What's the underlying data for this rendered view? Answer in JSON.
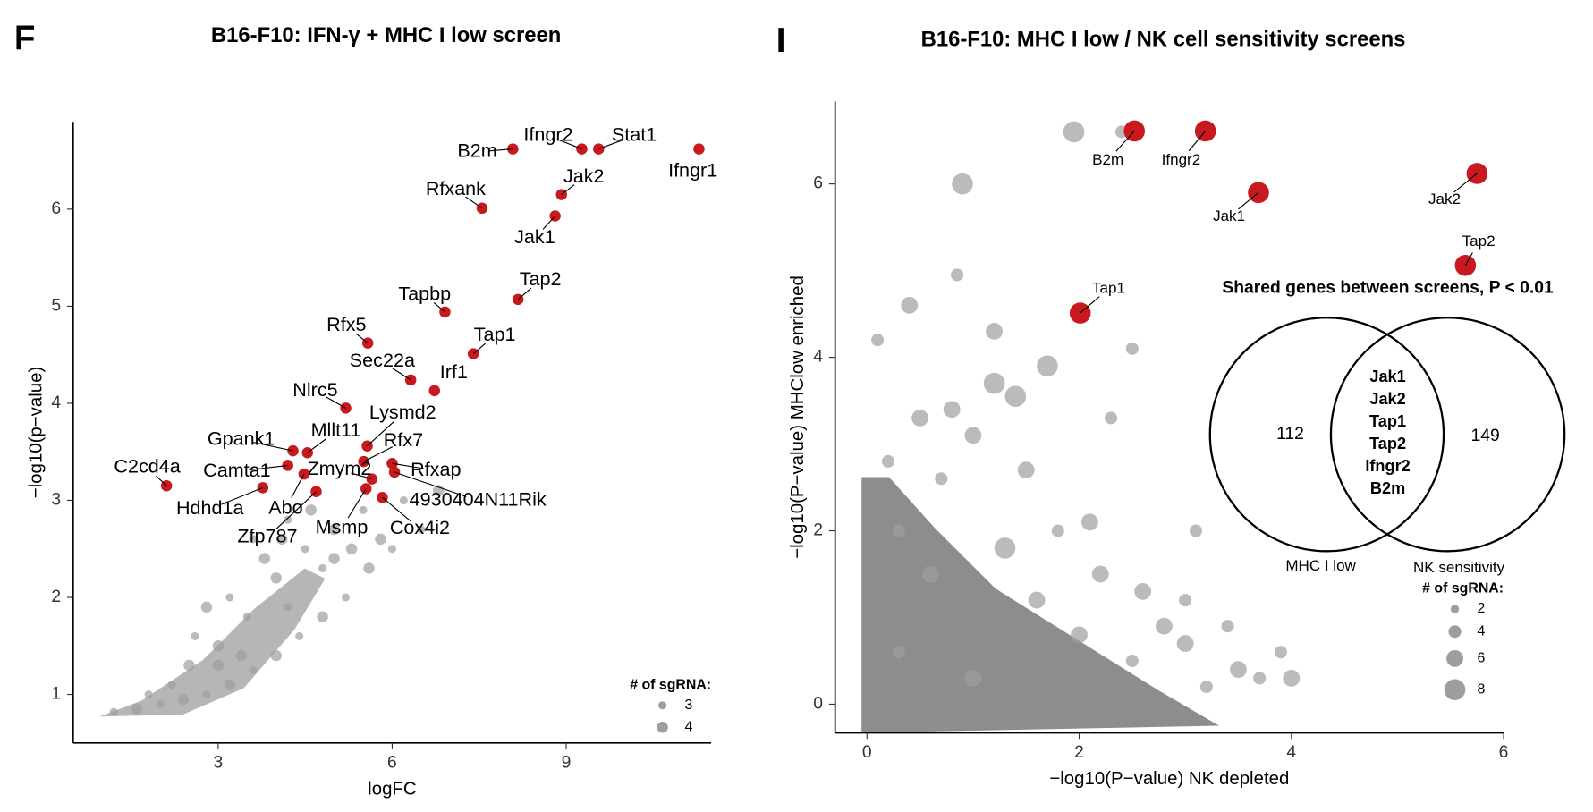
{
  "chart_data": [
    {
      "type": "scatter",
      "panel_label": "F",
      "title": "B16-F10: IFN-γ + MHC I low screen",
      "xlabel": "logFC",
      "ylabel": "−log10(p−value)",
      "xlim": [
        0.5,
        11.5
      ],
      "ylim": [
        0.5,
        6.9
      ],
      "xticks": [
        3,
        6,
        9
      ],
      "yticks": [
        1,
        2,
        3,
        4,
        5,
        6
      ],
      "series": [
        {
          "color": "#9e9e9e",
          "x": [
            1.2,
            1.6,
            2.0,
            2.4,
            2.8,
            3.2,
            3.6,
            4.0,
            4.4,
            4.8,
            5.2,
            5.6,
            6.0,
            3.0,
            3.5,
            2.8,
            3.2,
            4.0,
            4.5,
            5.0,
            5.5,
            3.8,
            4.2,
            4.6,
            6.2,
            2.5,
            2.2,
            3.4,
            4.8,
            5.3,
            6.5,
            5.8,
            1.8,
            3.0,
            4.2,
            5.0,
            3.6,
            4.1,
            2.6,
            6.8
          ],
          "values": [
            0.82,
            0.85,
            0.9,
            0.95,
            1.0,
            1.1,
            1.25,
            1.4,
            1.6,
            1.8,
            2.0,
            2.3,
            2.5,
            1.5,
            1.8,
            1.9,
            2.0,
            2.2,
            2.5,
            2.7,
            2.9,
            2.4,
            2.8,
            2.9,
            3.0,
            1.3,
            1.1,
            1.4,
            2.3,
            2.5,
            2.7,
            2.6,
            1.0,
            1.3,
            1.9,
            2.4,
            2.6,
            2.6,
            1.6,
            3.1
          ],
          "sizes": [
            3,
            4,
            3,
            4,
            3,
            4,
            3,
            4,
            3,
            4,
            3,
            4,
            3,
            4,
            3,
            4,
            3,
            4,
            3,
            4,
            3,
            4,
            3,
            4,
            3,
            4,
            3,
            4,
            3,
            4,
            3,
            4,
            3,
            4,
            3,
            4,
            3,
            4,
            3,
            4
          ]
        },
        {
          "color": "#c8191e",
          "labels": [
            "B2m",
            "Ifngr2",
            "Stat1",
            "Ifngr1",
            "Rfxank",
            "Jak2",
            "Jak1",
            "Tap2",
            "Tapbp",
            "Rfx5",
            "Tap1",
            "Sec22a",
            "Irf1",
            "Nlrc5",
            "Lysmd2",
            "Gpank1",
            "Mllt11",
            "Rfx7",
            "Camta1",
            "Rfxap",
            "4930404N11Rik",
            "Zmym2",
            "C2cd4a",
            "Hdhd1a",
            "Abo",
            "Zfp787",
            "Msmp",
            "Cox4i2"
          ],
          "x": [
            8.08,
            9.27,
            9.56,
            11.29,
            7.55,
            8.92,
            8.81,
            8.17,
            6.91,
            5.58,
            7.4,
            6.32,
            6.73,
            5.2,
            5.57,
            4.29,
            4.54,
            5.51,
            4.2,
            6.0,
            6.04,
            5.65,
            2.11,
            3.77,
            4.48,
            4.69,
            5.55,
            5.83
          ],
          "values": [
            6.62,
            6.62,
            6.62,
            6.62,
            6.01,
            6.15,
            5.93,
            5.07,
            4.94,
            4.62,
            4.51,
            4.24,
            4.13,
            3.95,
            3.56,
            3.51,
            3.49,
            3.4,
            3.36,
            3.38,
            3.29,
            3.22,
            3.15,
            3.13,
            3.27,
            3.09,
            3.12,
            3.03
          ],
          "sizes": [
            4,
            4,
            4,
            4,
            4,
            4,
            4,
            4,
            4,
            4,
            4,
            4,
            4,
            4,
            4,
            4,
            4,
            4,
            4,
            4,
            4,
            4,
            4,
            4,
            4,
            4,
            4,
            4
          ]
        }
      ],
      "legend": {
        "title": "# of sgRNA:",
        "sizes": [
          3,
          4
        ]
      }
    },
    {
      "type": "scatter",
      "panel_label": "I",
      "title": "B16-F10: MHC I low / NK cell sensitivity screens",
      "xlabel": "−log10(P−value) NK depleted",
      "ylabel": "−log10(P−value) MHClow enriched",
      "xlim": [
        -0.3,
        6
      ],
      "ylim": [
        -0.33,
        6.95
      ],
      "xticks": [
        0,
        2,
        4,
        6
      ],
      "yticks": [
        0,
        2,
        4,
        6
      ],
      "series": [
        {
          "color": "#9e9e9e",
          "x": [
            0.2,
            0.5,
            0.9,
            0.4,
            0.1,
            0.85,
            1.2,
            1.95,
            2.4,
            2.5,
            1.2,
            1.4,
            1.0,
            0.8,
            1.5,
            2.1,
            2.6,
            3.0,
            3.4,
            3.9,
            3.7,
            4.0,
            3.5,
            3.0,
            2.8,
            2.2,
            1.8,
            1.6,
            1.3,
            0.3,
            0.6,
            2.0,
            2.5,
            3.2,
            1.0,
            0.3,
            1.7,
            0.7,
            2.3,
            3.1
          ],
          "values": [
            2.8,
            3.3,
            6.0,
            4.6,
            4.2,
            4.95,
            4.3,
            6.6,
            6.6,
            4.1,
            3.7,
            3.55,
            3.1,
            3.4,
            2.7,
            2.1,
            1.3,
            1.2,
            0.9,
            0.6,
            0.3,
            0.3,
            0.4,
            0.7,
            0.9,
            1.5,
            2.0,
            1.2,
            1.8,
            2.0,
            1.5,
            0.8,
            0.5,
            0.2,
            0.3,
            0.6,
            3.9,
            2.6,
            3.3,
            2.0
          ],
          "sizes": [
            4,
            6,
            8,
            6,
            4,
            4,
            6,
            8,
            4,
            4,
            8,
            8,
            6,
            6,
            6,
            6,
            6,
            4,
            4,
            4,
            4,
            6,
            6,
            6,
            6,
            6,
            4,
            6,
            8,
            4,
            6,
            6,
            4,
            4,
            6,
            4,
            8,
            4,
            4,
            4
          ]
        },
        {
          "color": "#c8191e",
          "labels": [
            "B2m",
            "Ifngr2",
            "Jak1",
            "Jak2",
            "Tap2",
            "Tap1"
          ],
          "x": [
            2.52,
            3.19,
            3.69,
            5.75,
            5.64,
            2.01
          ],
          "values": [
            6.61,
            6.61,
            5.9,
            6.12,
            5.06,
            4.51
          ],
          "sizes": [
            8,
            8,
            8,
            8,
            8,
            8
          ]
        }
      ],
      "legend": {
        "title": "# of sgRNA:",
        "sizes": [
          2,
          4,
          6,
          8
        ]
      },
      "venn": {
        "title": "Shared genes between screens, P < 0.01",
        "left_count": 112,
        "right_count": 149,
        "shared": [
          "Jak1",
          "Jak2",
          "Tap1",
          "Tap2",
          "Ifngr2",
          "B2m"
        ],
        "left_label": "MHC I low",
        "right_label": "NK sensitivity"
      }
    }
  ]
}
